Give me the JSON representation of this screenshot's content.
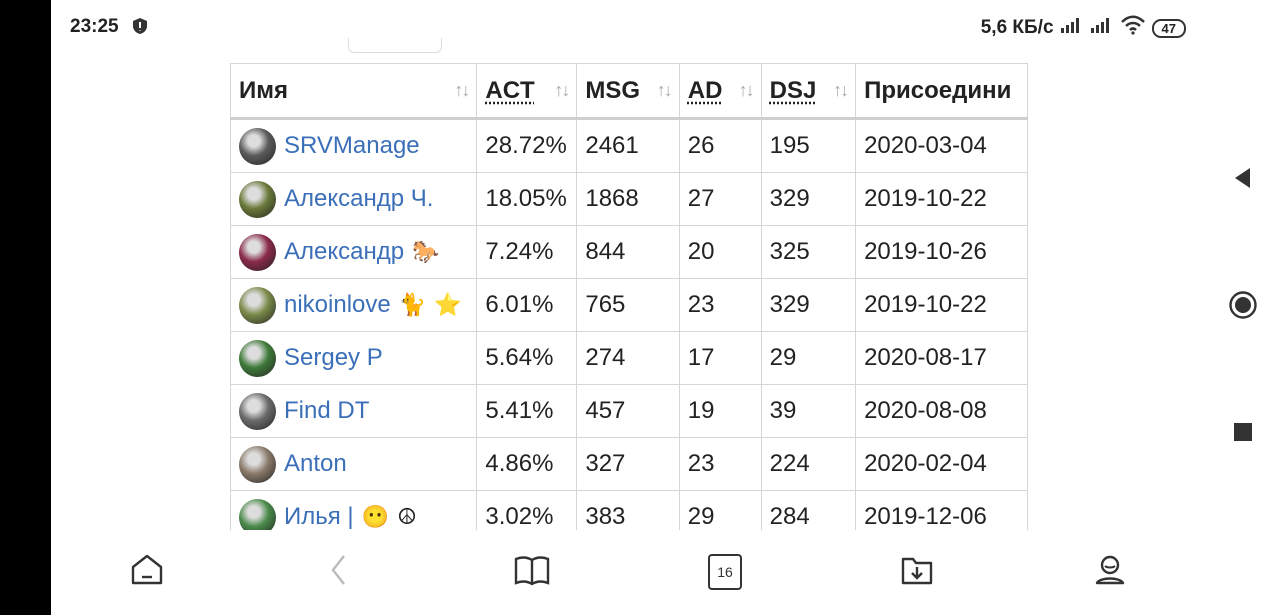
{
  "status_bar": {
    "time": "23:25",
    "network_speed": "5,6 КБ/с",
    "battery_level": "47",
    "icons": [
      "shield-icon",
      "signal-icon",
      "signal-icon",
      "wifi-icon",
      "battery-icon"
    ]
  },
  "table": {
    "headers": [
      {
        "label": "Имя",
        "abbr": false,
        "sortable": true
      },
      {
        "label": "ACT",
        "abbr": true,
        "sortable": true
      },
      {
        "label": "MSG",
        "abbr": false,
        "sortable": true
      },
      {
        "label": "AD",
        "abbr": true,
        "sortable": true
      },
      {
        "label": "DSJ",
        "abbr": true,
        "sortable": true
      },
      {
        "label": "Присоедини",
        "abbr": false,
        "sortable": false
      }
    ],
    "sort_icon": "↑↓",
    "rows": [
      {
        "name": "SRVManage",
        "emojis": [],
        "act": "28.72%",
        "msg": "2461",
        "ad": "26",
        "dsj": "195",
        "joined": "2020-03-04",
        "avatar_color": "#5b5b5b"
      },
      {
        "name": "Александр Ч.",
        "emojis": [],
        "act": "18.05%",
        "msg": "1868",
        "ad": "27",
        "dsj": "329",
        "joined": "2019-10-22",
        "avatar_color": "#6a7a3a"
      },
      {
        "name": "Александр",
        "emojis": [
          "🐎"
        ],
        "act": "7.24%",
        "msg": "844",
        "ad": "20",
        "dsj": "325",
        "joined": "2019-10-26",
        "avatar_color": "#8a2a4a"
      },
      {
        "name": "nikoinlove",
        "emojis": [
          "🐈",
          "⭐"
        ],
        "act": "6.01%",
        "msg": "765",
        "ad": "23",
        "dsj": "329",
        "joined": "2019-10-22",
        "avatar_color": "#7a8a4a"
      },
      {
        "name": "Sergey P",
        "emojis": [],
        "act": "5.64%",
        "msg": "274",
        "ad": "17",
        "dsj": "29",
        "joined": "2020-08-17",
        "avatar_color": "#3f7a3a"
      },
      {
        "name": "Find DT",
        "emojis": [],
        "act": "5.41%",
        "msg": "457",
        "ad": "19",
        "dsj": "39",
        "joined": "2020-08-08",
        "avatar_color": "#6a6a6a"
      },
      {
        "name": "Anton",
        "emojis": [],
        "act": "4.86%",
        "msg": "327",
        "ad": "23",
        "dsj": "224",
        "joined": "2020-02-04",
        "avatar_color": "#8a7a6a"
      },
      {
        "name": "Илья |",
        "emojis": [
          "😶",
          "☮"
        ],
        "act": "3.02%",
        "msg": "383",
        "ad": "29",
        "dsj": "284",
        "joined": "2019-12-06",
        "avatar_color": "#4a8a4a"
      }
    ]
  },
  "toolbar": {
    "tabs_count": "16",
    "buttons": [
      "home-icon",
      "back-icon",
      "book-icon",
      "tabs-icon",
      "download-icon",
      "profile-icon"
    ]
  },
  "colors": {
    "link": "#3b6fb8",
    "border": "#d6d6d6",
    "text": "#222222"
  }
}
